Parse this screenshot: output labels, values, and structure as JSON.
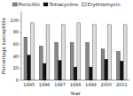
{
  "chart_data": {
    "type": "bar",
    "categories": [
      "1995",
      "1996",
      "1997",
      "1998",
      "1999",
      "2000",
      "2001"
    ],
    "series": [
      {
        "name": "Penicillin",
        "color": "#888888",
        "values": [
          72,
          57,
          63,
          63,
          63,
          52,
          48
        ]
      },
      {
        "name": "Tetracycline",
        "color": "#111111",
        "values": [
          42,
          28,
          33,
          22,
          22,
          35,
          32
        ]
      },
      {
        "name": "Erythromycin",
        "color": "#dddddd",
        "values": [
          96,
          93,
          93,
          96,
          93,
          93,
          93
        ]
      }
    ],
    "xlabel": "Year",
    "ylabel": "Percentage susceptible",
    "ylim": [
      0,
      115
    ],
    "yticks": [
      0,
      20,
      40,
      60,
      80,
      100
    ],
    "grid": false,
    "legend": "top"
  }
}
